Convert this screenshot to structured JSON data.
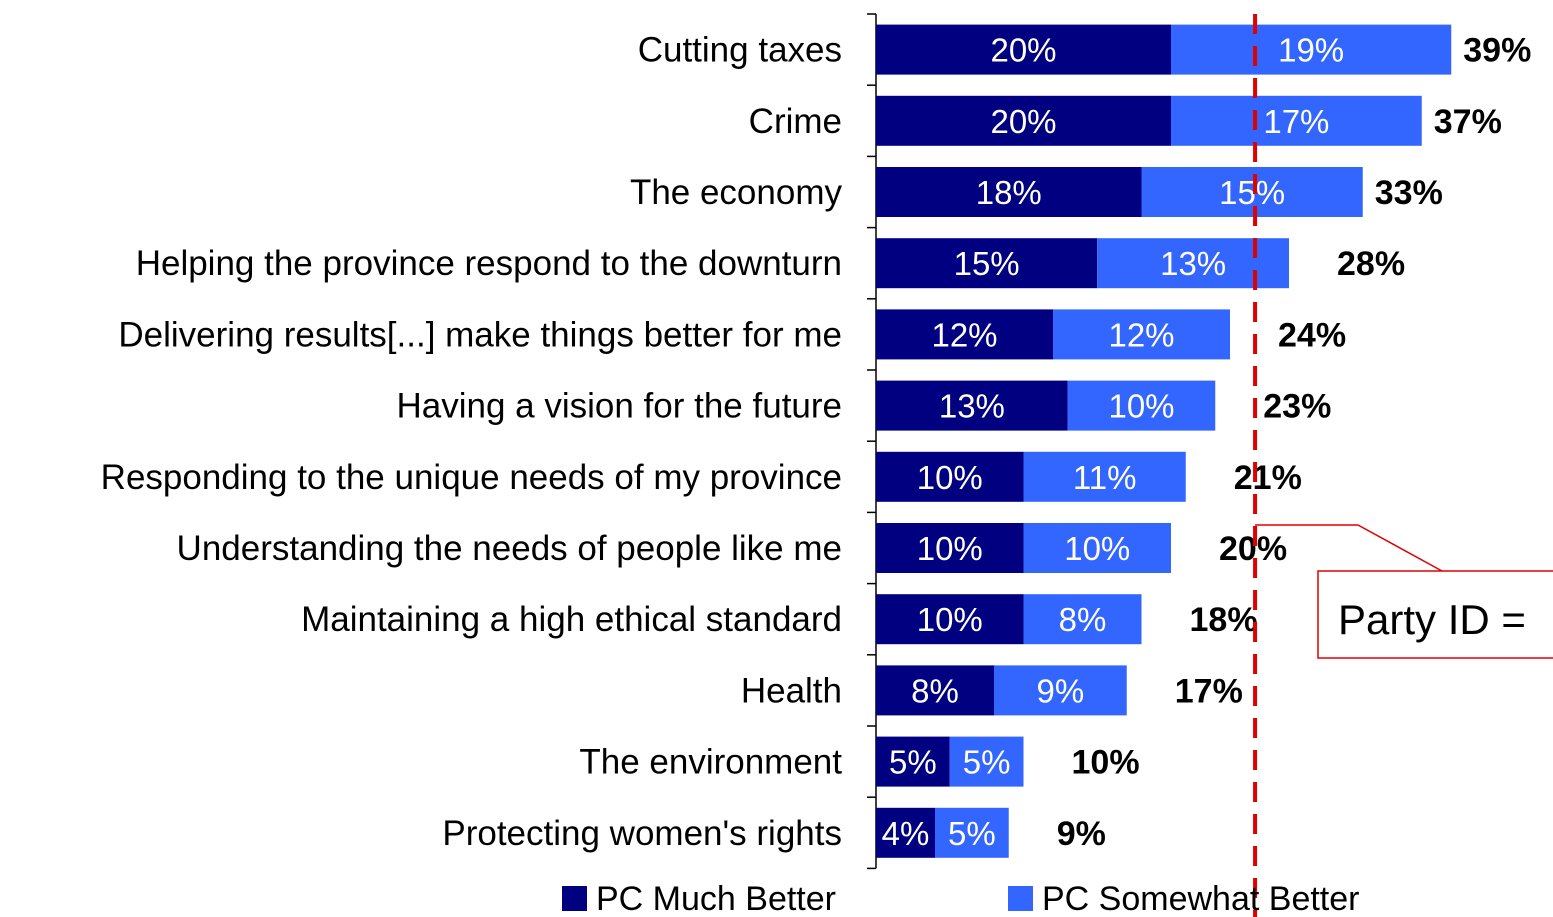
{
  "chart_data": {
    "type": "bar",
    "orientation": "horizontal",
    "stacked": true,
    "categories": [
      "Cutting taxes",
      "Crime",
      "The economy",
      "Helping the province respond to the downturn",
      "Delivering results[...] make things better for me",
      "Having a vision for the future",
      "Responding to the unique needs of my province",
      "Understanding the needs of people like me",
      "Maintaining a high ethical standard",
      "Health",
      "The environment",
      "Protecting women's rights"
    ],
    "series": [
      {
        "name": "PC Much Better",
        "color": "#000080",
        "values": [
          20,
          20,
          18,
          15,
          12,
          13,
          10,
          10,
          10,
          8,
          5,
          4
        ],
        "labels": [
          "20%",
          "20%",
          "18%",
          "15%",
          "12%",
          "13%",
          "10%",
          "10%",
          "10%",
          "8%",
          "5%",
          "4%"
        ]
      },
      {
        "name": "PC Somewhat Better",
        "color": "#3366ff",
        "values": [
          19,
          17,
          15,
          13,
          12,
          10,
          11,
          10,
          8,
          9,
          5,
          5
        ],
        "labels": [
          "19%",
          "17%",
          "15%",
          "13%",
          "12%",
          "10%",
          "11%",
          "10%",
          "8%",
          "9%",
          "5%",
          "5%"
        ]
      }
    ],
    "totals": [
      39,
      37,
      33,
      28,
      24,
      23,
      21,
      20,
      18,
      17,
      10,
      9
    ],
    "total_labels": [
      "39%",
      "37%",
      "33%",
      "28%",
      "24%",
      "23%",
      "21%",
      "20%",
      "18%",
      "17%",
      "10%",
      "9%"
    ],
    "reference_line": {
      "value": 25.7,
      "color": "#e00000",
      "style": "dashed"
    },
    "annotation": {
      "text": "Party ID ="
    },
    "legend_position": "bottom",
    "grid": false
  }
}
